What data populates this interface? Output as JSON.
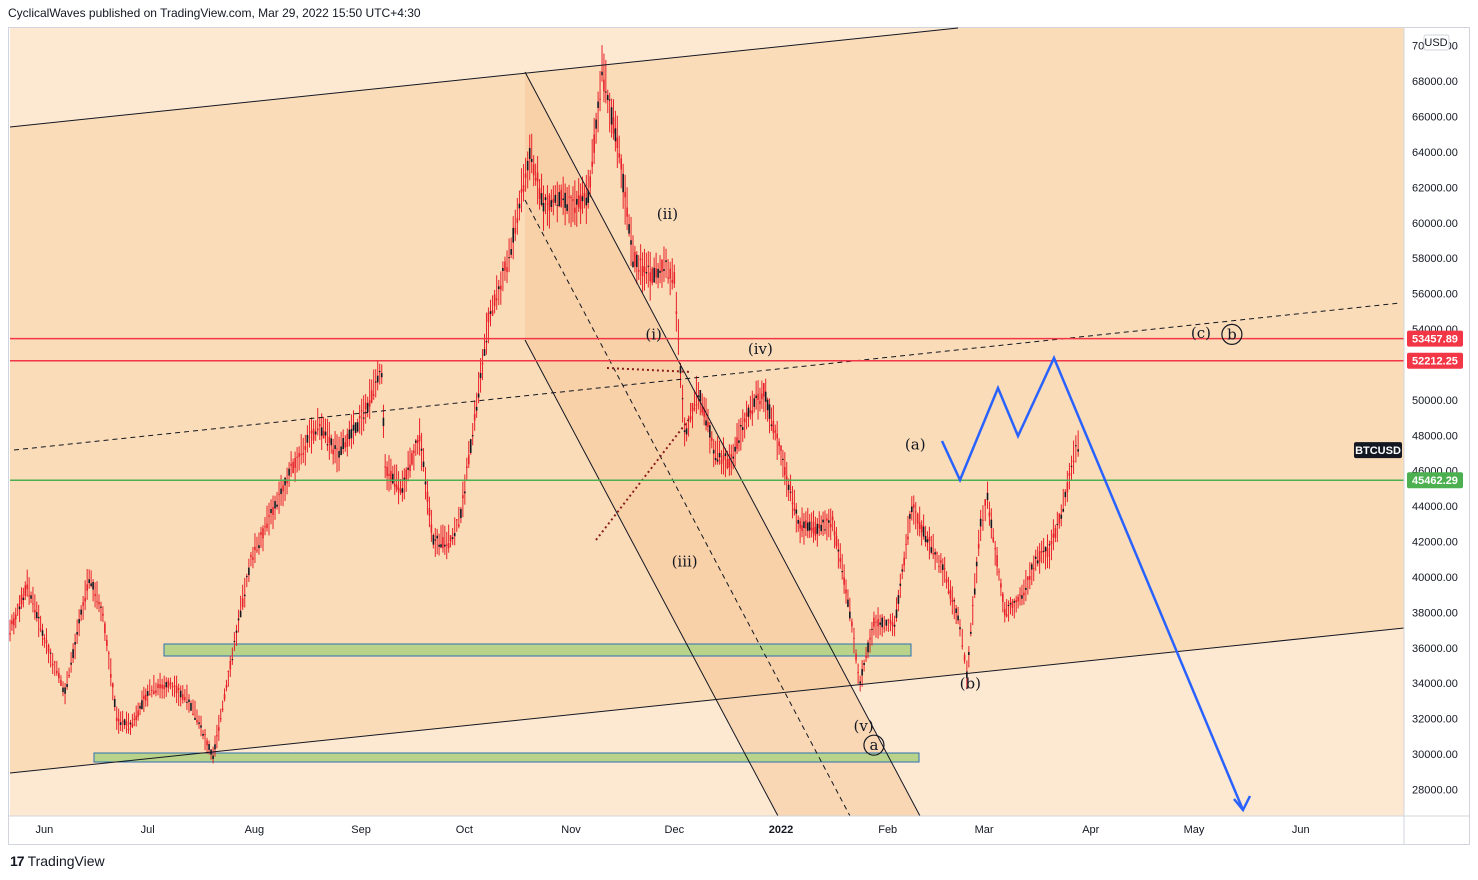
{
  "header": {
    "text": "CyclicalWaves published on TradingView.com, Mar 29, 2022 15:50 UTC+4:30"
  },
  "footer": {
    "brand": "TradingView",
    "logo_glyph": "17"
  },
  "chart_data": {
    "type": "candlestick",
    "symbol": "BTCUSD",
    "currency": "USD",
    "ylim": [
      26500,
      71000
    ],
    "y_ticks": [
      28000,
      30000,
      32000,
      34000,
      36000,
      38000,
      40000,
      42000,
      44000,
      46000,
      48000,
      50000,
      52000,
      54000,
      56000,
      58000,
      60000,
      62000,
      64000,
      66000,
      68000,
      70000
    ],
    "x_ticks": [
      {
        "label": "Jun",
        "date": "2021-06-01"
      },
      {
        "label": "Jul",
        "date": "2021-07-01"
      },
      {
        "label": "Aug",
        "date": "2021-08-01"
      },
      {
        "label": "Sep",
        "date": "2021-09-01"
      },
      {
        "label": "Oct",
        "date": "2021-10-01"
      },
      {
        "label": "Nov",
        "date": "2021-11-01"
      },
      {
        "label": "Dec",
        "date": "2021-12-01"
      },
      {
        "label": "2022",
        "date": "2022-01-01"
      },
      {
        "label": "Feb",
        "date": "2022-02-01"
      },
      {
        "label": "Mar",
        "date": "2022-03-01"
      },
      {
        "label": "Apr",
        "date": "2022-04-01"
      },
      {
        "label": "May",
        "date": "2022-05-01"
      },
      {
        "label": "Jun",
        "date": "2022-06-01"
      }
    ],
    "xlim": [
      "2021-05-22",
      "2022-07-01"
    ],
    "price_series": [
      [
        "2021-05-22",
        37000
      ],
      [
        "2021-05-27",
        39500
      ],
      [
        "2021-06-01",
        36500
      ],
      [
        "2021-06-07",
        33500
      ],
      [
        "2021-06-14",
        40000
      ],
      [
        "2021-06-18",
        38000
      ],
      [
        "2021-06-22",
        32000
      ],
      [
        "2021-06-26",
        31500
      ],
      [
        "2021-07-01",
        33500
      ],
      [
        "2021-07-07",
        34000
      ],
      [
        "2021-07-13",
        33000
      ],
      [
        "2021-07-20",
        29800
      ],
      [
        "2021-07-25",
        35000
      ],
      [
        "2021-07-31",
        41000
      ],
      [
        "2021-08-07",
        44000
      ],
      [
        "2021-08-14",
        47000
      ],
      [
        "2021-08-20",
        48500
      ],
      [
        "2021-08-25",
        47000
      ],
      [
        "2021-08-31",
        48500
      ],
      [
        "2021-09-07",
        51500
      ],
      [
        "2021-09-08",
        46000
      ],
      [
        "2021-09-13",
        45000
      ],
      [
        "2021-09-18",
        48000
      ],
      [
        "2021-09-22",
        42000
      ],
      [
        "2021-09-27",
        42000
      ],
      [
        "2021-09-30",
        43500
      ],
      [
        "2021-10-04",
        49000
      ],
      [
        "2021-10-08",
        54500
      ],
      [
        "2021-10-14",
        58000
      ],
      [
        "2021-10-20",
        64000
      ],
      [
        "2021-10-24",
        61000
      ],
      [
        "2021-10-28",
        61500
      ],
      [
        "2021-11-01",
        61000
      ],
      [
        "2021-11-06",
        61500
      ],
      [
        "2021-11-10",
        68500
      ],
      [
        "2021-11-15",
        64000
      ],
      [
        "2021-11-19",
        58000
      ],
      [
        "2021-11-24",
        57000
      ],
      [
        "2021-11-28",
        57500
      ],
      [
        "2021-12-01",
        57000
      ],
      [
        "2021-12-04",
        48000
      ],
      [
        "2021-12-08",
        50500
      ],
      [
        "2021-12-13",
        47000
      ],
      [
        "2021-12-17",
        46500
      ],
      [
        "2021-12-22",
        49000
      ],
      [
        "2021-12-27",
        50500
      ],
      [
        "2022-01-01",
        47000
      ],
      [
        "2022-01-06",
        43000
      ],
      [
        "2022-01-11",
        42700
      ],
      [
        "2022-01-16",
        43200
      ],
      [
        "2022-01-21",
        38000
      ],
      [
        "2022-01-24",
        34000
      ],
      [
        "2022-01-28",
        37500
      ],
      [
        "2022-02-03",
        37200
      ],
      [
        "2022-02-08",
        44000
      ],
      [
        "2022-02-12",
        42300
      ],
      [
        "2022-02-17",
        40500
      ],
      [
        "2022-02-22",
        37300
      ],
      [
        "2022-02-24",
        34500
      ],
      [
        "2022-02-28",
        43000
      ],
      [
        "2022-03-02",
        44500
      ],
      [
        "2022-03-07",
        38000
      ],
      [
        "2022-03-12",
        38800
      ],
      [
        "2022-03-16",
        41000
      ],
      [
        "2022-03-20",
        41500
      ],
      [
        "2022-03-24",
        44000
      ],
      [
        "2022-03-27",
        46800
      ],
      [
        "2022-03-29",
        47500
      ]
    ],
    "horizontal_lines": [
      {
        "price": 53457.89,
        "label": "53457.89",
        "color": "#f23645"
      },
      {
        "price": 52212.25,
        "label": "52212.25",
        "color": "#f23645"
      },
      {
        "price": 45462.29,
        "label": "45462.29",
        "color": "#4caf50"
      }
    ],
    "last_price_label": "BTCUSD",
    "wave_labels": [
      {
        "text": "(ii)",
        "date": "2021-11-29",
        "price": 60200
      },
      {
        "text": "(i)",
        "date": "2021-11-25",
        "price": 53400
      },
      {
        "text": "(iv)",
        "date": "2021-12-26",
        "price": 52600
      },
      {
        "text": "(iii)",
        "date": "2021-12-04",
        "price": 40600
      },
      {
        "text": "(v)",
        "date": "2022-01-25",
        "price": 31300
      },
      {
        "text": "(a)",
        "date": "2022-02-09",
        "price": 47200
      },
      {
        "text": "(b)",
        "date": "2022-02-25",
        "price": 33700
      },
      {
        "text": "(c)",
        "date": "2022-05-03",
        "price": 53500
      }
    ],
    "circled_labels": [
      {
        "text": "a",
        "date": "2022-01-28",
        "price": 30500
      },
      {
        "text": "b",
        "date": "2022-05-12",
        "price": 53700
      }
    ],
    "colors": {
      "candles": "#e8202a",
      "projection": "#2962ff",
      "outer_channel": "#fbdcb8",
      "outer_channel_light": "#fde8d2",
      "inner_channel": "#f6c99a",
      "support_zone": "#b9d48a",
      "trendlines": "#131722",
      "red_line": "#f23645",
      "green_line": "#4caf50"
    }
  }
}
